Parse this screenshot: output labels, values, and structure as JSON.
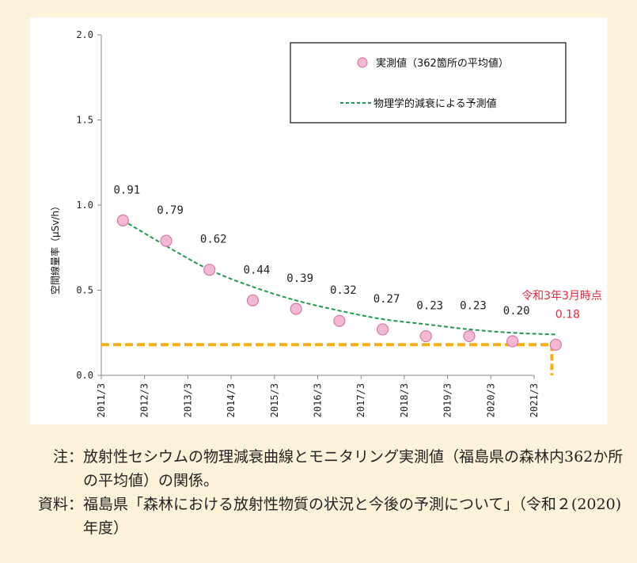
{
  "chart_data": {
    "type": "scatter",
    "categories": [
      "2011/3",
      "2012/3",
      "2013/3",
      "2014/3",
      "2015/3",
      "2016/3",
      "2017/3",
      "2018/3",
      "2019/3",
      "2020/3",
      "2021/3"
    ],
    "ylabel": "空間線量率（μSv/h）",
    "ylim": [
      0,
      2.0
    ],
    "yticks": [
      "0.0",
      "0.5",
      "1.0",
      "1.5",
      "2.0"
    ],
    "ytick_values": [
      0,
      0.5,
      1.0,
      1.5,
      2.0
    ],
    "series": [
      {
        "name": "実測値（362箇所の平均値）",
        "x": [
          0.5,
          1.5,
          2.5,
          3.5,
          4.5,
          5.5,
          6.5,
          7.5,
          8.5,
          9.5,
          10.5
        ],
        "values": [
          0.91,
          0.79,
          0.62,
          0.44,
          0.39,
          0.32,
          0.27,
          0.23,
          0.23,
          0.2,
          0.18
        ],
        "labels": [
          "0.91",
          "0.79",
          "0.62",
          "0.44",
          "0.39",
          "0.32",
          "0.27",
          "0.23",
          "0.23",
          "0.20",
          "0.18"
        ],
        "color": "#f3b8d4"
      },
      {
        "name": "物理学的減衰による予測値",
        "x": [
          0.5,
          1.5,
          2.5,
          3.5,
          4.5,
          5.5,
          6.5,
          7.5,
          8.5,
          9.5,
          10.5
        ],
        "values": [
          0.91,
          0.76,
          0.62,
          0.52,
          0.44,
          0.38,
          0.33,
          0.3,
          0.27,
          0.25,
          0.24
        ],
        "color": "#1f9a4a"
      }
    ],
    "reference_value": 0.18,
    "reference_color": "#f5b014",
    "legend_position": "top-right",
    "annotation": "令和3年3月時点",
    "annotation_color": "#e8273a",
    "grid": false
  },
  "notes": [
    {
      "label": "注：",
      "text": "放射性セシウムの物理減衰曲線とモニタリング実測値（福島県の森林内362か所の平均値）の関係。"
    },
    {
      "label": "資料：",
      "text": "福島県「森林における放射性物質の状況と今後の予測について」（令和２(2020)年度）"
    }
  ]
}
